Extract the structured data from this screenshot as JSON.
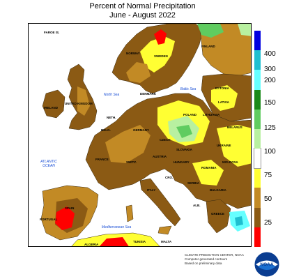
{
  "title": "Percent of Normal Precipitation",
  "subtitle": "June - August 2022",
  "legend": {
    "ticks": [
      "400",
      "300",
      "200",
      "150",
      "125",
      "100",
      "75",
      "50",
      "25"
    ],
    "colors": [
      "#ff0000",
      "#8b5a14",
      "#c28a25",
      "#ffff33",
      "#ffffff",
      "#b8f0a0",
      "#60cc60",
      "#1a8a1a",
      "#66ffff",
      "#1fbfd0",
      "#0000e0"
    ]
  },
  "labels": {
    "faroe": "FAROE IS.",
    "norway": "NORWAY",
    "sweden": "SWEDEN",
    "finland": "FINLAND",
    "estonia": "ESTONIA",
    "latvia": "LATVIA",
    "lithuania": "LITHUANIA",
    "belarus": "BELARUS",
    "ukraine": "UKRAINE",
    "poland": "POLAND",
    "denmark": "DENMARK",
    "germany": "GERMANY",
    "netherlands": "NETH.",
    "belgium": "BELG.",
    "france": "FRANCE",
    "uk": "UNITED KINGDOM",
    "ireland": "IRELAND",
    "spain": "SPAIN",
    "portugal": "PORTUGAL",
    "italy": "ITALY",
    "switzerland": "SWITZ.",
    "austria": "AUSTRIA",
    "czech": "CZECH",
    "slovakia": "SLOVAKIA",
    "hungary": "HUNGARY",
    "romania": "ROMANIA",
    "moldova": "MOLDOVA",
    "serbia": "SERBIA",
    "croatia": "CRO.",
    "bulgaria": "BULGARIA",
    "greece": "GREECE",
    "albania": "ALB.",
    "malta": "MALTA",
    "tunisia": "TUNISIA",
    "algeria": "ALGERIA"
  },
  "seas": {
    "north_sea": "North Sea",
    "baltic_sea": "Baltic Sea",
    "atlantic": "ATLANTIC OCEAN",
    "mediterranean": "Mediterranean Sea"
  },
  "credit": {
    "line1": "CLIMATE PREDICTION CENTER, NOAA",
    "line2": "Computer generated contours",
    "line3": "Based on preliminary data"
  },
  "logo": {
    "text": "NOAA"
  }
}
